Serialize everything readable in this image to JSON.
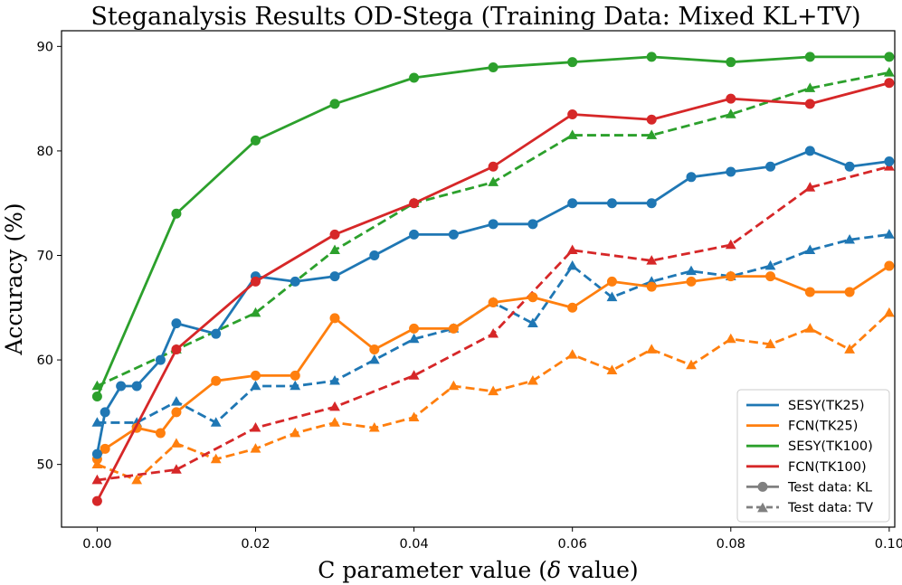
{
  "chart_data": {
    "type": "line",
    "title": "Steganalysis Results OD-Stega (Training Data: Mixed KL+TV)",
    "xlabel": "C parameter value (δ value)",
    "xlabel_main": "C parameter value (",
    "xlabel_symbol": "δ",
    "xlabel_tail": " value)",
    "ylabel": "Accuracy (%)",
    "xlim": [
      -0.0045,
      0.1007
    ],
    "ylim": [
      44,
      91.5
    ],
    "xticks": [
      0.0,
      0.02,
      0.04,
      0.06,
      0.08,
      0.1
    ],
    "xtick_labels": [
      "0.00",
      "0.02",
      "0.04",
      "0.06",
      "0.08",
      "0.10"
    ],
    "yticks": [
      50,
      60,
      70,
      80,
      90
    ],
    "ytick_labels": [
      "50",
      "60",
      "70",
      "80",
      "90"
    ],
    "grid": false,
    "legend_position": "bottom-right",
    "legend": [
      {
        "label": "SESY(TK25)",
        "color": "#1f77b4",
        "kind": "line"
      },
      {
        "label": "FCN(TK25)",
        "color": "#ff7f0e",
        "kind": "line"
      },
      {
        "label": "SESY(TK100)",
        "color": "#2ca02c",
        "kind": "line"
      },
      {
        "label": "FCN(TK100)",
        "color": "#d62728",
        "kind": "line"
      },
      {
        "label": "Test data: KL",
        "color": "#808080",
        "kind": "solid-circle"
      },
      {
        "label": "Test data: TV",
        "color": "#808080",
        "kind": "dashed-triangle"
      }
    ],
    "series": [
      {
        "name": "FCN(TK25) — Test data: TV",
        "color": "#ff7f0e",
        "style": "dashed",
        "marker": "triangle",
        "x": [
          0,
          0.005,
          0.01,
          0.015,
          0.02,
          0.025,
          0.03,
          0.035,
          0.04,
          0.045,
          0.05,
          0.055,
          0.06,
          0.065,
          0.07,
          0.075,
          0.08,
          0.085,
          0.09,
          0.095,
          0.1
        ],
        "y": [
          50,
          48.5,
          52,
          50.5,
          51.5,
          53,
          54,
          53.5,
          54.5,
          57.5,
          57,
          58,
          60.5,
          59,
          61,
          59.5,
          62,
          61.5,
          63,
          61,
          64.5
        ]
      },
      {
        "name": "SESY(TK25) — Test data: TV",
        "color": "#1f77b4",
        "style": "dashed",
        "marker": "triangle",
        "x": [
          0,
          0.005,
          0.01,
          0.015,
          0.02,
          0.025,
          0.03,
          0.035,
          0.04,
          0.045,
          0.05,
          0.055,
          0.06,
          0.065,
          0.07,
          0.075,
          0.08,
          0.085,
          0.09,
          0.095,
          0.1
        ],
        "y": [
          54,
          54,
          56,
          54,
          57.5,
          57.5,
          58,
          60,
          62,
          63,
          65.5,
          63.5,
          69,
          66,
          67.5,
          68.5,
          68,
          69,
          70.5,
          71.5,
          72
        ]
      },
      {
        "name": "FCN(TK100) — Test data: TV",
        "color": "#d62728",
        "style": "dashed",
        "marker": "triangle",
        "x": [
          0,
          0.01,
          0.02,
          0.03,
          0.04,
          0.05,
          0.06,
          0.07,
          0.08,
          0.09,
          0.1
        ],
        "y": [
          48.5,
          49.5,
          53.5,
          55.5,
          58.5,
          62.5,
          70.5,
          69.5,
          71,
          76.5,
          78.5
        ]
      },
      {
        "name": "SESY(TK100) — Test data: TV",
        "color": "#2ca02c",
        "style": "dashed",
        "marker": "triangle",
        "x": [
          0,
          0.01,
          0.02,
          0.03,
          0.04,
          0.05,
          0.06,
          0.07,
          0.08,
          0.09,
          0.1
        ],
        "y": [
          57.5,
          61,
          64.5,
          70.5,
          75,
          77,
          81.5,
          81.5,
          83.5,
          86,
          87.5
        ]
      },
      {
        "name": "FCN(TK25) — Test data: KL",
        "color": "#ff7f0e",
        "style": "solid",
        "marker": "circle",
        "x": [
          0,
          0.001,
          0.005,
          0.008,
          0.01,
          0.015,
          0.02,
          0.025,
          0.03,
          0.035,
          0.04,
          0.045,
          0.05,
          0.055,
          0.06,
          0.065,
          0.07,
          0.075,
          0.08,
          0.085,
          0.09,
          0.095,
          0.1
        ],
        "y": [
          50.5,
          51.5,
          53.5,
          53,
          55,
          58,
          58.5,
          58.5,
          64,
          61,
          63,
          63,
          65.5,
          66,
          65,
          67.5,
          67,
          67.5,
          68,
          68,
          66.5,
          66.5,
          69
        ]
      },
      {
        "name": "SESY(TK25) — Test data: KL",
        "color": "#1f77b4",
        "style": "solid",
        "marker": "circle",
        "x": [
          0,
          0.001,
          0.003,
          0.005,
          0.008,
          0.01,
          0.015,
          0.02,
          0.025,
          0.03,
          0.035,
          0.04,
          0.045,
          0.05,
          0.055,
          0.06,
          0.065,
          0.07,
          0.075,
          0.08,
          0.085,
          0.09,
          0.095,
          0.1
        ],
        "y": [
          51,
          55,
          57.5,
          57.5,
          60,
          63.5,
          62.5,
          68,
          67.5,
          68,
          70,
          72,
          72,
          73,
          73,
          75,
          75,
          75,
          77.5,
          78,
          78.5,
          80,
          78.5,
          79
        ]
      },
      {
        "name": "FCN(TK100) — Test data: KL",
        "color": "#d62728",
        "style": "solid",
        "marker": "circle",
        "x": [
          0,
          0.01,
          0.02,
          0.03,
          0.04,
          0.05,
          0.06,
          0.07,
          0.08,
          0.09,
          0.1
        ],
        "y": [
          46.5,
          61,
          67.5,
          72,
          75,
          78.5,
          83.5,
          83,
          85,
          84.5,
          86.5
        ]
      },
      {
        "name": "SESY(TK100) — Test data: KL",
        "color": "#2ca02c",
        "style": "solid",
        "marker": "circle",
        "x": [
          0,
          0.01,
          0.02,
          0.03,
          0.04,
          0.05,
          0.06,
          0.07,
          0.08,
          0.09,
          0.1
        ],
        "y": [
          56.5,
          74,
          81,
          84.5,
          87,
          88,
          88.5,
          89,
          88.5,
          89,
          89
        ]
      }
    ]
  }
}
